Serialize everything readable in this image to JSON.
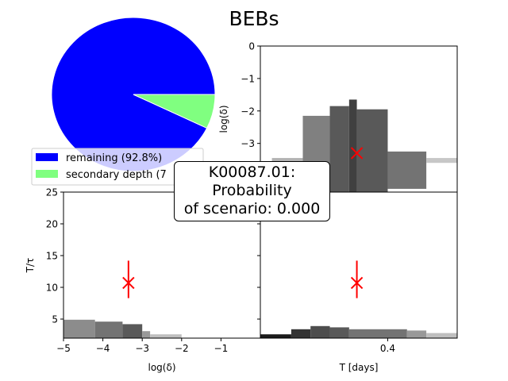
{
  "chart_data": [
    {
      "type": "pie",
      "title": "BEBs",
      "slices": [
        {
          "label": "remaining (92.8%)",
          "value": 92.8,
          "color": "#0000ff"
        },
        {
          "label": "secondary depth (7",
          "value": 7.2,
          "color": "#80ff80"
        }
      ],
      "legend_position": "lower-left"
    },
    {
      "type": "heatmap",
      "subplot": "top-right",
      "xlabel": "",
      "ylabel": "log(δ)",
      "xlim": [
        0.07,
        0.58
      ],
      "ylim": [
        -4.5,
        0
      ],
      "yticks": [
        "0",
        "−1",
        "−2",
        "−3"
      ],
      "xticks": [],
      "marker": {
        "x": 0.32,
        "y": -3.3,
        "color": "#ff0000"
      },
      "cells": [
        {
          "x0": 0.1,
          "x1": 0.18,
          "y0": -3.75,
          "y1": -3.45,
          "shade": 0.7
        },
        {
          "x0": 0.18,
          "x1": 0.25,
          "y0": -4.5,
          "y1": -2.15,
          "shade": 0.5
        },
        {
          "x0": 0.25,
          "x1": 0.3,
          "y0": -4.5,
          "y1": -1.85,
          "shade": 0.35
        },
        {
          "x0": 0.3,
          "x1": 0.32,
          "y0": -4.5,
          "y1": -1.65,
          "shade": 0.25
        },
        {
          "x0": 0.32,
          "x1": 0.4,
          "y0": -4.5,
          "y1": -1.95,
          "shade": 0.35
        },
        {
          "x0": 0.4,
          "x1": 0.5,
          "y0": -4.4,
          "y1": -3.25,
          "shade": 0.45
        },
        {
          "x0": 0.5,
          "x1": 0.58,
          "y0": -3.6,
          "y1": -3.45,
          "shade": 0.78
        }
      ]
    },
    {
      "type": "heatmap",
      "subplot": "bottom-left",
      "xlabel": "log(δ)",
      "ylabel": "T/τ",
      "xlim": [
        -5,
        0
      ],
      "ylim": [
        2,
        25
      ],
      "xticks": [
        "−5",
        "−4",
        "−3",
        "−2",
        "−1"
      ],
      "yticks": [
        "25",
        "20",
        "15",
        "10",
        "5"
      ],
      "marker": {
        "x": -3.35,
        "y": 10.7,
        "color": "#ff0000",
        "yerr": [
          8.3,
          14.2
        ]
      },
      "cells": [
        {
          "x0": -5,
          "x1": -4.2,
          "y0": 2,
          "y1": 4.9,
          "shade": 0.55
        },
        {
          "x0": -4.2,
          "x1": -3.5,
          "y0": 2,
          "y1": 4.6,
          "shade": 0.45
        },
        {
          "x0": -3.5,
          "x1": -3.0,
          "y0": 2,
          "y1": 4.2,
          "shade": 0.35
        },
        {
          "x0": -3.0,
          "x1": -2.8,
          "y0": 2,
          "y1": 3.1,
          "shade": 0.6
        },
        {
          "x0": -2.8,
          "x1": -2.0,
          "y0": 2,
          "y1": 2.6,
          "shade": 0.75
        }
      ]
    },
    {
      "type": "heatmap",
      "subplot": "bottom-right",
      "xlabel": "T [days]",
      "ylabel": "",
      "xlim": [
        0.07,
        0.58
      ],
      "ylim": [
        2,
        25
      ],
      "xticks": [
        "0.4"
      ],
      "marker": {
        "x": 0.32,
        "y": 10.7,
        "color": "#ff0000",
        "yerr": [
          8.3,
          14.2
        ]
      },
      "cells": [
        {
          "x0": 0.07,
          "x1": 0.15,
          "y0": 2,
          "y1": 2.6,
          "shade": 0.1
        },
        {
          "x0": 0.15,
          "x1": 0.2,
          "y0": 2,
          "y1": 3.4,
          "shade": 0.2
        },
        {
          "x0": 0.2,
          "x1": 0.25,
          "y0": 2,
          "y1": 3.9,
          "shade": 0.3
        },
        {
          "x0": 0.25,
          "x1": 0.3,
          "y0": 2,
          "y1": 3.7,
          "shade": 0.35
        },
        {
          "x0": 0.3,
          "x1": 0.45,
          "y0": 2,
          "y1": 3.4,
          "shade": 0.45
        },
        {
          "x0": 0.45,
          "x1": 0.5,
          "y0": 2,
          "y1": 3.2,
          "shade": 0.6
        },
        {
          "x0": 0.5,
          "x1": 0.58,
          "y0": 2,
          "y1": 2.8,
          "shade": 0.75
        }
      ]
    }
  ],
  "annotation": {
    "line1": "K00087.01:",
    "line2": "Probability",
    "line3": "of scenario: 0.000"
  }
}
